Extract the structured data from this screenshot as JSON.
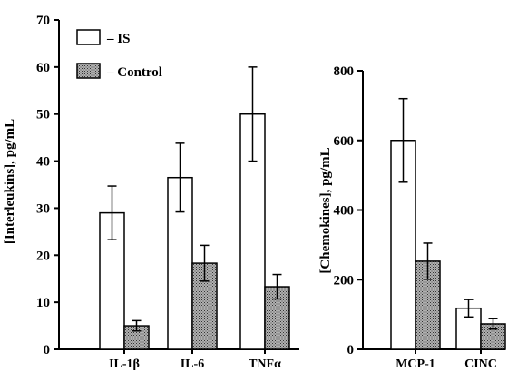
{
  "chart_data": [
    {
      "type": "bar",
      "title": "",
      "xlabel": "",
      "ylabel": "[Interleukins], pg/mL",
      "categories": [
        "IL-1β",
        "IL-6",
        "TNFα"
      ],
      "ylim": [
        0,
        70
      ],
      "yticks": [
        0,
        10,
        20,
        30,
        40,
        50,
        60,
        70
      ],
      "series": [
        {
          "name": "– IS",
          "fill": "#ffffff",
          "pattern": "none",
          "values": [
            29,
            36.5,
            50
          ],
          "errors": [
            5.7,
            7.3,
            10
          ]
        },
        {
          "name": "– Control",
          "fill": "#8c8c8c",
          "pattern": "stipple",
          "values": [
            5,
            18.3,
            13.3
          ],
          "errors": [
            1.1,
            3.8,
            2.6
          ]
        }
      ],
      "legend": {
        "placement": "top-left",
        "entries": [
          "– IS",
          "– Control"
        ]
      }
    },
    {
      "type": "bar",
      "title": "",
      "xlabel": "",
      "ylabel": "[Chemokines], pg/mL",
      "categories": [
        "MCP-1",
        "CINC"
      ],
      "ylim": [
        0,
        800
      ],
      "yticks": [
        0,
        200,
        400,
        600,
        800
      ],
      "series": [
        {
          "name": "– IS",
          "fill": "#ffffff",
          "pattern": "none",
          "values": [
            600,
            118
          ],
          "errors": [
            120,
            25
          ]
        },
        {
          "name": "– Control",
          "fill": "#8c8c8c",
          "pattern": "stipple",
          "values": [
            253,
            73
          ],
          "errors": [
            52,
            15
          ]
        }
      ]
    }
  ]
}
